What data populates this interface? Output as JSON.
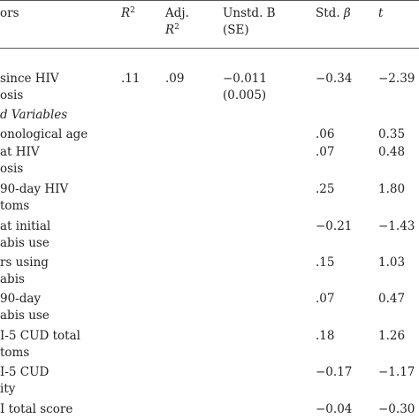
{
  "header": {
    "predictors": "ors",
    "r2": "R",
    "r2_sup": "2",
    "adj_line1": "Adj.",
    "adj_line2": "R",
    "adj_sup": "2",
    "unstd_line1": "Unstd. B",
    "unstd_line2": "(SE)",
    "std_label": "Std. ",
    "std_beta": "β",
    "t": "t"
  },
  "rows": {
    "since_hiv_line1": " since HIV",
    "since_hiv_line2": "osis",
    "since_hiv_r2": ".11",
    "since_hiv_adj": ".09",
    "since_hiv_b": "−0.011",
    "since_hiv_se": "(0.005)",
    "since_hiv_beta": "−0.34",
    "since_hiv_t": "−2.39",
    "section_label": "d Variables",
    "chrono_label": "onological age",
    "chrono_beta": ".06",
    "chrono_t": "0.35",
    "age_dx_line1": " at HIV",
    "age_dx_line2": "osis",
    "age_dx_beta": ".07",
    "age_dx_t": "0.48",
    "hiv_sym_line1": " 90-day HIV",
    "hiv_sym_line2": "toms",
    "hiv_sym_beta": ".25",
    "hiv_sym_t": "1.80",
    "age_init_line1": " at initial",
    "age_init_line2": "abis use",
    "age_init_beta": "−0.21",
    "age_init_t": "−1.43",
    "years_line1": "rs using",
    "years_line2": "abis",
    "years_beta": ".15",
    "years_t": "1.03",
    "day90_line1": " 90-day",
    "day90_line2": "abis use",
    "day90_beta": ".07",
    "day90_t": "0.47",
    "cud_total_line1": "I-5 CUD total",
    "cud_total_line2": "toms",
    "cud_total_beta": ".18",
    "cud_total_t": "1.26",
    "cud_sev_line1": "I-5 CUD",
    "cud_sev_line2": "ity",
    "cud_sev_beta": "−0.17",
    "cud_sev_t": "−1.17",
    "total_score_label": "I total score",
    "total_score_beta": "−0.04",
    "total_score_t": "−0.30"
  }
}
